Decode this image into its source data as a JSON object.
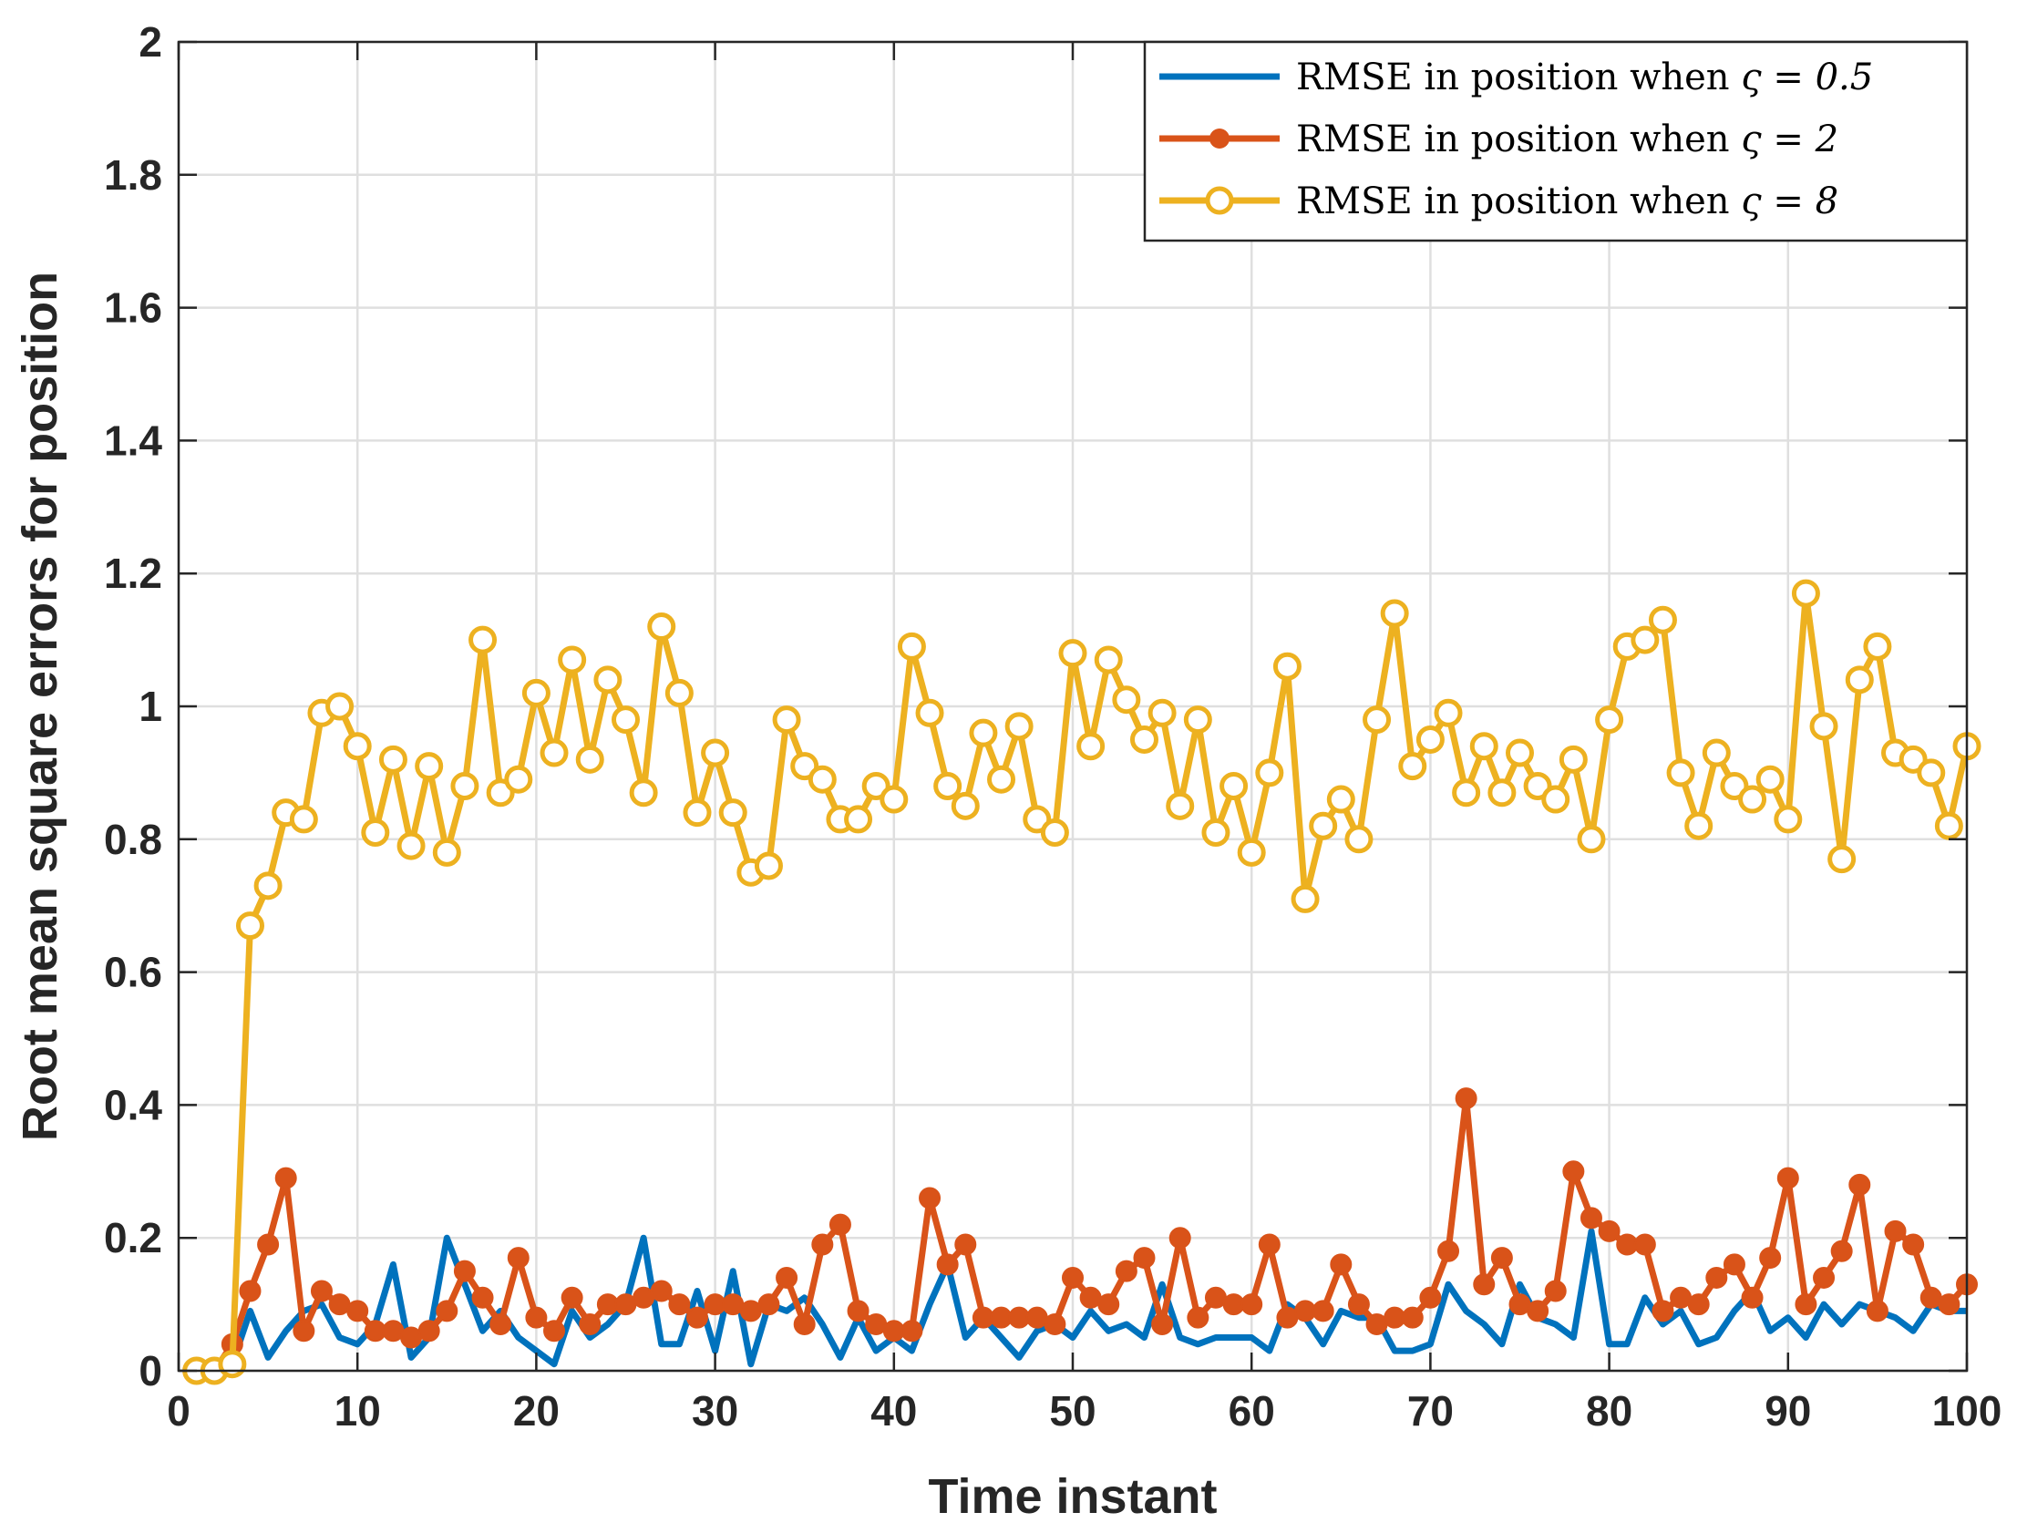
{
  "chart_data": {
    "type": "line",
    "xlabel": "Time instant",
    "ylabel": "Root mean square errors for position",
    "xlim": [
      0,
      100
    ],
    "ylim": [
      0,
      2
    ],
    "xticks": [
      0,
      10,
      20,
      30,
      40,
      50,
      60,
      70,
      80,
      90,
      100
    ],
    "yticks": [
      0,
      0.2,
      0.4,
      0.6,
      0.8,
      1,
      1.2,
      1.4,
      1.6,
      1.8,
      2
    ],
    "ytick_labels": [
      "0",
      "0.2",
      "0.4",
      "0.6",
      "0.8",
      "1",
      "1.2",
      "1.4",
      "1.6",
      "1.8",
      "2"
    ],
    "grid": true,
    "legend_position": "top-right",
    "x": [
      1,
      2,
      3,
      4,
      5,
      6,
      7,
      8,
      9,
      10,
      11,
      12,
      13,
      14,
      15,
      16,
      17,
      18,
      19,
      20,
      21,
      22,
      23,
      24,
      25,
      26,
      27,
      28,
      29,
      30,
      31,
      32,
      33,
      34,
      35,
      36,
      37,
      38,
      39,
      40,
      41,
      42,
      43,
      44,
      45,
      46,
      47,
      48,
      49,
      50,
      51,
      52,
      53,
      54,
      55,
      56,
      57,
      58,
      59,
      60,
      61,
      62,
      63,
      64,
      65,
      66,
      67,
      68,
      69,
      70,
      71,
      72,
      73,
      74,
      75,
      76,
      77,
      78,
      79,
      80,
      81,
      82,
      83,
      84,
      85,
      86,
      87,
      88,
      89,
      90,
      91,
      92,
      93,
      94,
      95,
      96,
      97,
      98,
      99,
      100
    ],
    "series": [
      {
        "name": "RMSE in position when ς = 0.5",
        "label_prefix": "RMSE in position when ",
        "label_math": "ς = 0.5",
        "color": "#0072BD",
        "marker": "none",
        "values": [
          0.0,
          0.0,
          0.01,
          0.09,
          0.02,
          0.06,
          0.09,
          0.1,
          0.05,
          0.04,
          0.07,
          0.16,
          0.02,
          0.05,
          0.2,
          0.13,
          0.06,
          0.09,
          0.05,
          0.03,
          0.01,
          0.09,
          0.05,
          0.07,
          0.1,
          0.2,
          0.04,
          0.04,
          0.12,
          0.03,
          0.15,
          0.01,
          0.1,
          0.09,
          0.11,
          0.07,
          0.02,
          0.08,
          0.03,
          0.05,
          0.03,
          0.1,
          0.16,
          0.05,
          0.08,
          0.05,
          0.02,
          0.06,
          0.07,
          0.05,
          0.09,
          0.06,
          0.07,
          0.05,
          0.13,
          0.05,
          0.04,
          0.05,
          0.05,
          0.05,
          0.03,
          0.1,
          0.08,
          0.04,
          0.09,
          0.08,
          0.08,
          0.03,
          0.03,
          0.04,
          0.13,
          0.09,
          0.07,
          0.04,
          0.13,
          0.08,
          0.07,
          0.05,
          0.21,
          0.04,
          0.04,
          0.11,
          0.07,
          0.09,
          0.04,
          0.05,
          0.09,
          0.12,
          0.06,
          0.08,
          0.05,
          0.1,
          0.07,
          0.1,
          0.09,
          0.08,
          0.06,
          0.1,
          0.09,
          0.09
        ]
      },
      {
        "name": "RMSE in position when ς = 2",
        "label_prefix": "RMSE in position when ",
        "label_math": "ς = 2",
        "color": "#D95319",
        "marker": "filled-circle",
        "values": [
          0.0,
          0.0,
          0.04,
          0.12,
          0.19,
          0.29,
          0.06,
          0.12,
          0.1,
          0.09,
          0.06,
          0.06,
          0.05,
          0.06,
          0.09,
          0.15,
          0.11,
          0.07,
          0.17,
          0.08,
          0.06,
          0.11,
          0.07,
          0.1,
          0.1,
          0.11,
          0.12,
          0.1,
          0.08,
          0.1,
          0.1,
          0.09,
          0.1,
          0.14,
          0.07,
          0.19,
          0.22,
          0.09,
          0.07,
          0.06,
          0.06,
          0.26,
          0.16,
          0.19,
          0.08,
          0.08,
          0.08,
          0.08,
          0.07,
          0.14,
          0.11,
          0.1,
          0.15,
          0.17,
          0.07,
          0.2,
          0.08,
          0.11,
          0.1,
          0.1,
          0.19,
          0.08,
          0.09,
          0.09,
          0.16,
          0.1,
          0.07,
          0.08,
          0.08,
          0.11,
          0.18,
          0.41,
          0.13,
          0.17,
          0.1,
          0.09,
          0.12,
          0.3,
          0.23,
          0.21,
          0.19,
          0.19,
          0.09,
          0.11,
          0.1,
          0.14,
          0.16,
          0.11,
          0.17,
          0.29,
          0.1,
          0.14,
          0.18,
          0.28,
          0.09,
          0.21,
          0.19,
          0.11,
          0.1,
          0.13
        ]
      },
      {
        "name": "RMSE in position when ς = 8",
        "label_prefix": "RMSE in position when ",
        "label_math": "ς = 8",
        "color": "#EDB120",
        "marker": "open-circle",
        "values": [
          0.0,
          0.0,
          0.01,
          0.67,
          0.73,
          0.84,
          0.83,
          0.99,
          1.0,
          0.94,
          0.81,
          0.92,
          0.79,
          0.91,
          0.78,
          0.88,
          1.1,
          0.87,
          0.89,
          1.02,
          0.93,
          1.07,
          0.92,
          1.04,
          0.98,
          0.87,
          1.12,
          1.02,
          0.84,
          0.93,
          0.84,
          0.75,
          0.76,
          0.98,
          0.91,
          0.89,
          0.83,
          0.83,
          0.88,
          0.86,
          1.09,
          0.99,
          0.88,
          0.85,
          0.96,
          0.89,
          0.97,
          0.83,
          0.81,
          1.08,
          0.94,
          1.07,
          1.01,
          0.95,
          0.99,
          0.85,
          0.98,
          0.81,
          0.88,
          0.78,
          0.9,
          1.06,
          0.71,
          0.82,
          0.86,
          0.8,
          0.98,
          1.14,
          0.91,
          0.95,
          0.99,
          0.87,
          0.94,
          0.87,
          0.93,
          0.88,
          0.86,
          0.92,
          0.8,
          0.98,
          1.09,
          1.1,
          1.13,
          0.9,
          0.82,
          0.93,
          0.88,
          0.86,
          0.89,
          0.83,
          1.17,
          0.97,
          0.77,
          1.04,
          1.09,
          0.93,
          0.92,
          0.9,
          0.82,
          0.94
        ]
      }
    ]
  }
}
